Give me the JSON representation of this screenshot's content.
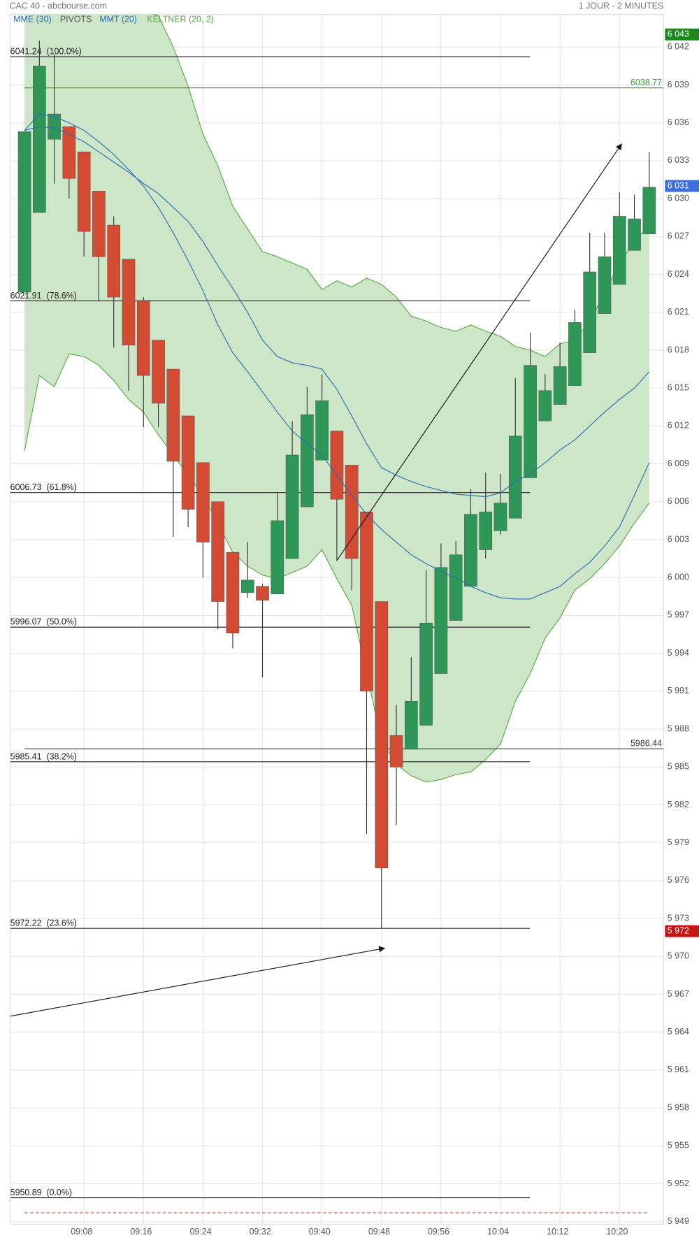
{
  "chart_data": {
    "type": "candlestick",
    "title": "CAC 40 - abcbourse.com",
    "subtitle": "1 JOUR - 2 MINUTES",
    "categories": [
      null,
      null,
      null,
      null,
      "09:08",
      null,
      null,
      null,
      "09:16",
      null,
      null,
      null,
      "09:24",
      null,
      null,
      null,
      "09:32",
      null,
      null,
      null,
      "09:40",
      null,
      null,
      null,
      "09:48",
      null,
      null,
      null,
      "09:56",
      null,
      null,
      null,
      "10:04",
      null,
      null,
      null,
      "10:12",
      null,
      null,
      null,
      "10:20",
      null,
      null
    ],
    "open": [
      6022.6,
      6028.9,
      6034.7,
      6035.7,
      6033.7,
      6030.6,
      6027.9,
      6025.2,
      6021.9,
      6018.8,
      6016.5,
      6012.8,
      6009.1,
      6006.0,
      6002.0,
      5998.8,
      5999.3,
      5998.7,
      6001.5,
      6005.6,
      6009.3,
      6011.6,
      6008.9,
      6005.2,
      5998.1,
      5987.5,
      5986.4,
      5988.3,
      5992.4,
      5996.6,
      5999.3,
      6002.2,
      6003.7,
      6004.7,
      6007.9,
      6012.4,
      6013.7,
      6015.2,
      6017.8,
      6020.9,
      6023.2,
      6025.9,
      6027.2
    ],
    "high": [
      6035.3,
      6042.5,
      6041.4,
      6035.7,
      6033.7,
      6030.6,
      6028.6,
      6025.2,
      6022.2,
      6018.8,
      6016.5,
      6012.8,
      6009.1,
      6006.0,
      6002.0,
      6002.8,
      5999.5,
      6006.7,
      6012.4,
      6015.1,
      6016.1,
      6011.6,
      6008.9,
      6005.2,
      5998.1,
      5989.9,
      5993.7,
      6000.6,
      6002.7,
      6002.9,
      6007.0,
      6008.3,
      6008.2,
      6015.8,
      6019.4,
      6016.1,
      6018.6,
      6021.2,
      6027.3,
      6027.3,
      6030.5,
      6030.3,
      6033.7
    ],
    "low": [
      6022.6,
      6028.9,
      6031.2,
      6030.0,
      6025.4,
      6021.9,
      6018.2,
      6014.8,
      6011.9,
      6011.9,
      6003.2,
      6004.0,
      6000.0,
      5995.9,
      5994.4,
      5998.4,
      5992.1,
      5998.7,
      6001.5,
      6005.6,
      6009.3,
      6001.3,
      5999.0,
      5979.7,
      5972.2,
      5980.4,
      5986.4,
      5988.3,
      5992.4,
      5996.6,
      5999.3,
      6001.5,
      6003.4,
      6004.7,
      6007.9,
      6012.4,
      6013.7,
      6015.2,
      6017.8,
      6020.9,
      6023.2,
      6025.9,
      6027.2
    ],
    "close": [
      6035.3,
      6040.5,
      6036.7,
      6031.6,
      6027.4,
      6025.4,
      6022.2,
      6018.4,
      6016.0,
      6013.8,
      6009.2,
      6005.4,
      6002.8,
      5998.1,
      5995.6,
      5999.8,
      5998.2,
      6004.5,
      6009.7,
      6012.9,
      6014.0,
      6006.2,
      6001.5,
      5991.0,
      5977.0,
      5985.0,
      5990.2,
      5996.4,
      6000.8,
      6001.8,
      6005.0,
      6005.2,
      6005.9,
      6011.2,
      6016.8,
      6014.8,
      6016.7,
      6020.2,
      6024.2,
      6025.4,
      6028.6,
      6028.4,
      6030.9
    ],
    "up_color": "#2e9656",
    "down_color": "#d44b33",
    "series": [
      {
        "name": "MME (30)",
        "color": "#2a6db5",
        "values": [
          6035.4,
          6036.7,
          6036.5,
          6036.0,
          6035.4,
          6034.5,
          6033.5,
          6032.3,
          6031.0,
          6029.3,
          6027.3,
          6025.1,
          6022.7,
          6020.0,
          6017.8,
          6016.3,
          6014.7,
          6013.1,
          6011.6,
          6010.6,
          6009.7,
          6008.1,
          6006.5,
          6005.0,
          6003.8,
          6002.8,
          6001.8,
          6001.1,
          6000.5,
          6000.0,
          5999.3,
          5998.8,
          5998.4,
          5998.3,
          5998.3,
          5998.8,
          5999.3,
          6000.3,
          6001.2,
          6002.5,
          6004.0,
          6006.5,
          6009.1
        ]
      },
      {
        "name": "MMT (20)",
        "color": "#2a6db5",
        "values": [
          6035.4,
          6035.7,
          6035.6,
          6035.1,
          6034.5,
          6033.7,
          6032.9,
          6032.1,
          6031.2,
          6030.4,
          6029.3,
          6028.2,
          6026.6,
          6024.7,
          6022.9,
          6021.0,
          6018.8,
          6017.5,
          6017.0,
          6016.8,
          6016.5,
          6014.9,
          6012.8,
          6010.6,
          6008.7,
          6008.1,
          6007.6,
          6007.2,
          6006.9,
          6006.6,
          6006.5,
          6006.4,
          6006.7,
          6007.6,
          6008.2,
          6009.1,
          6010.1,
          6010.9,
          6012.0,
          6013.1,
          6014.1,
          6015.0,
          6016.3
        ]
      }
    ],
    "keltner": {
      "name": "KELTNER (20, 2)",
      "color": "#5aa845",
      "fill": "#cde6c8",
      "upper": [
        6047.0,
        6046.8,
        6046.6,
        6046.3,
        6046.0,
        6045.7,
        6045.4,
        6045.1,
        6044.8,
        6044.5,
        6042.0,
        6038.9,
        6035.1,
        6032.6,
        6029.4,
        6027.6,
        6025.8,
        6025.4,
        6024.9,
        6024.4,
        6022.8,
        6023.5,
        6023.0,
        6023.7,
        6023.2,
        6022.2,
        6020.7,
        6020.3,
        6019.8,
        6019.5,
        6020.0,
        6019.5,
        6019.1,
        6018.3,
        6018.0,
        6017.5,
        6018.5,
        6018.8,
        6020.3,
        6022.5,
        6024.9,
        6026.6,
        6027.9
      ],
      "lower": [
        6010.0,
        6016.0,
        6015.1,
        6017.7,
        6017.5,
        6016.8,
        6015.6,
        6014.1,
        6013.1,
        6011.3,
        6009.7,
        6008.1,
        6006.5,
        6004.3,
        6002.0,
        6000.9,
        6000.2,
        5999.9,
        6000.4,
        6000.9,
        6002.2,
        5999.9,
        5997.8,
        5992.4,
        5987.1,
        5985.2,
        5984.3,
        5983.8,
        5984.0,
        5984.4,
        5984.6,
        5985.6,
        5986.8,
        5990.2,
        5992.4,
        5995.2,
        5996.8,
        5999.0,
        5999.9,
        6001.1,
        6002.5,
        6004.3,
        6005.9
      ]
    },
    "pivots": {
      "name": "PIVOTS",
      "color": "#222222",
      "levels": [
        {
          "value": 6041.24,
          "label": "6041.24  (100.0%)"
        },
        {
          "value": 6021.91,
          "label": "6021.91  (78.6%)"
        },
        {
          "value": 6006.73,
          "label": "6006.73  (61.8%)"
        },
        {
          "value": 5996.07,
          "label": "5996.07  (50.0%)"
        },
        {
          "value": 5985.41,
          "label": "5985.41  (38.2%)"
        },
        {
          "value": 5972.22,
          "label": "5972.22  (23.6%)"
        },
        {
          "value": 5950.89,
          "label": "5950.89  (0.0%)"
        }
      ]
    },
    "hlines": [
      {
        "value": 6038.77,
        "color": "#3a9a3a"
      },
      {
        "value": 5986.44,
        "color": "#333333"
      }
    ],
    "dashed_line": {
      "value": 5949.7,
      "color": "#e03030"
    },
    "price_tags": [
      {
        "value": 6043,
        "label": "6 043",
        "color": "#1a8a1a"
      },
      {
        "value": 6031,
        "label": "6 031",
        "color": "#3b6fe0"
      },
      {
        "value": 5972,
        "label": "5 972",
        "color": "#cc1111"
      }
    ],
    "ylim": [
      5948.8,
      6044.6
    ],
    "yticks": [
      {
        "value": 6042,
        "label": "6 042"
      },
      {
        "value": 6039,
        "label": "6 039"
      },
      {
        "value": 6036,
        "label": "6 036"
      },
      {
        "value": 6033,
        "label": "6 033"
      },
      {
        "value": 6030,
        "label": "6 030"
      },
      {
        "value": 6027,
        "label": "6 027"
      },
      {
        "value": 6024,
        "label": "6 024"
      },
      {
        "value": 6021,
        "label": "6 021"
      },
      {
        "value": 6018,
        "label": "6 018"
      },
      {
        "value": 6015,
        "label": "6 015"
      },
      {
        "value": 6012,
        "label": "6 012"
      },
      {
        "value": 6009,
        "label": "6 009"
      },
      {
        "value": 6006,
        "label": "6 006"
      },
      {
        "value": 6003,
        "label": "6 003"
      },
      {
        "value": 6000,
        "label": "6 000"
      },
      {
        "value": 5997,
        "label": "5 997"
      },
      {
        "value": 5994,
        "label": "5 994"
      },
      {
        "value": 5991,
        "label": "5 991"
      },
      {
        "value": 5988,
        "label": "5 988"
      },
      {
        "value": 5985,
        "label": "5 985"
      },
      {
        "value": 5982,
        "label": "5 982"
      },
      {
        "value": 5979,
        "label": "5 979"
      },
      {
        "value": 5976,
        "label": "5 976"
      },
      {
        "value": 5973,
        "label": "5 973"
      },
      {
        "value": 5970,
        "label": "5 970"
      },
      {
        "value": 5967,
        "label": "5 967"
      },
      {
        "value": 5964,
        "label": "5 964"
      },
      {
        "value": 5961,
        "label": "5 961"
      },
      {
        "value": 5958,
        "label": "5 958"
      },
      {
        "value": 5955,
        "label": "5 955"
      },
      {
        "value": 5952,
        "label": "5 952"
      },
      {
        "value": 5949,
        "label": "5 949"
      }
    ],
    "grid": true
  }
}
